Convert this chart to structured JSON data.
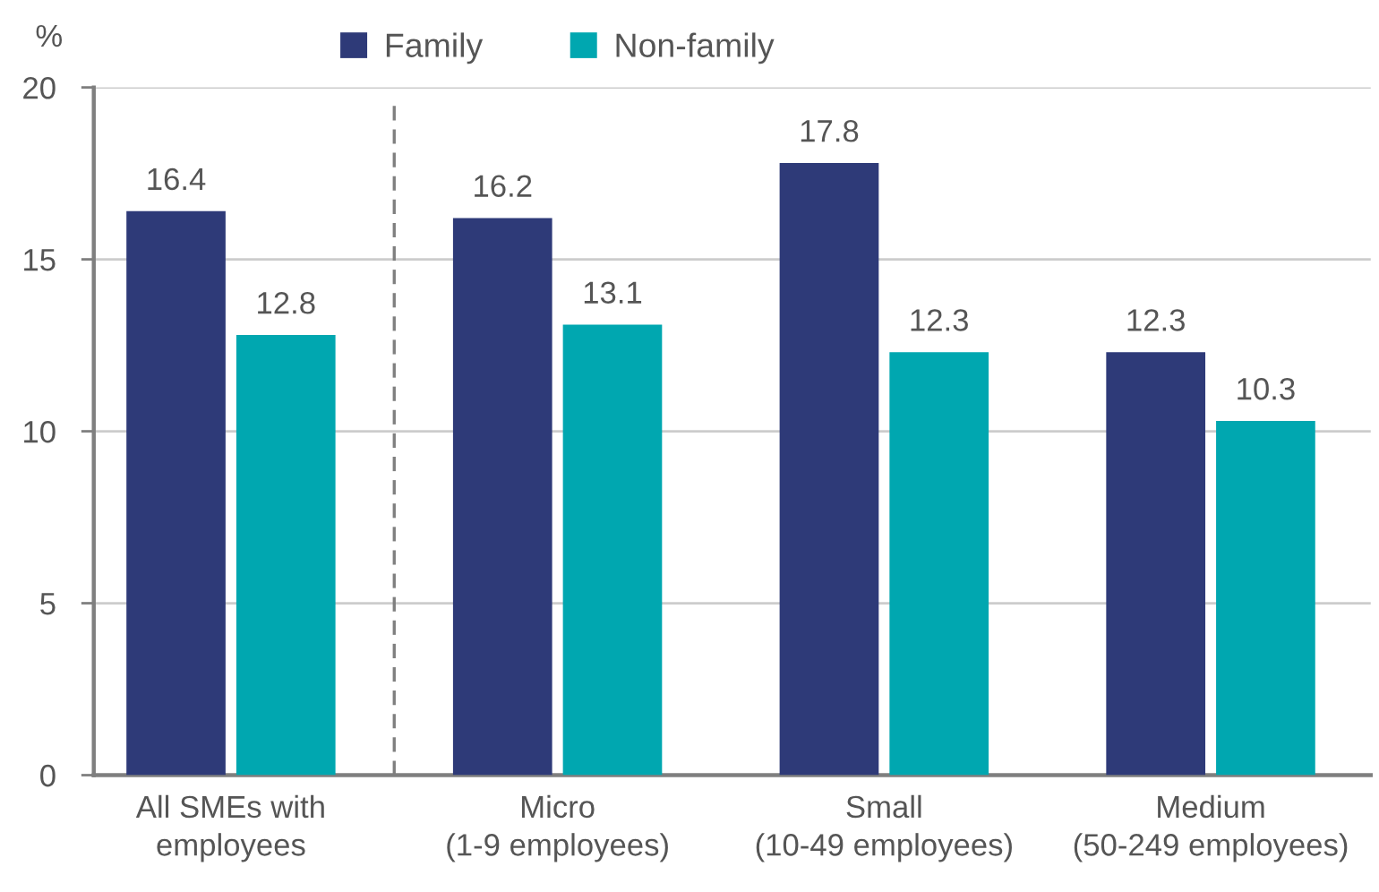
{
  "chart_data": {
    "type": "bar",
    "categories": [
      "All SMEs with\nemployees",
      "Micro\n(1-9 employees)",
      "Small\n(10-49 employees)",
      "Medium\n(50-249 employees)"
    ],
    "series": [
      {
        "name": "Family",
        "color": "#2e3a78",
        "values": [
          16.4,
          16.2,
          17.8,
          12.3
        ]
      },
      {
        "name": "Non-family",
        "color": "#00a7b0",
        "values": [
          12.8,
          13.1,
          12.3,
          10.3
        ]
      }
    ],
    "ylabel": "%",
    "ylim": [
      0,
      20
    ],
    "yticks": [
      0,
      5,
      10,
      15,
      20
    ],
    "grid": "y",
    "legend": "top",
    "data_labels": true
  }
}
